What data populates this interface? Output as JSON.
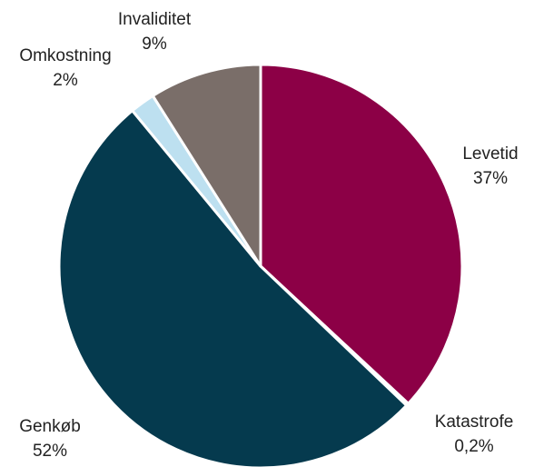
{
  "chart_data": {
    "type": "pie",
    "categories": [
      "Levetid",
      "Katastrofe",
      "Genkøb",
      "Omkostning",
      "Invaliditet"
    ],
    "values": [
      37,
      0.2,
      52,
      2,
      9
    ],
    "value_labels": [
      "37%",
      "0,2%",
      "52%",
      "2%",
      "9%"
    ],
    "colors": [
      "#8c0046",
      "#d9d9d9",
      "#053a4e",
      "#bde0f0",
      "#7a6e69"
    ]
  }
}
